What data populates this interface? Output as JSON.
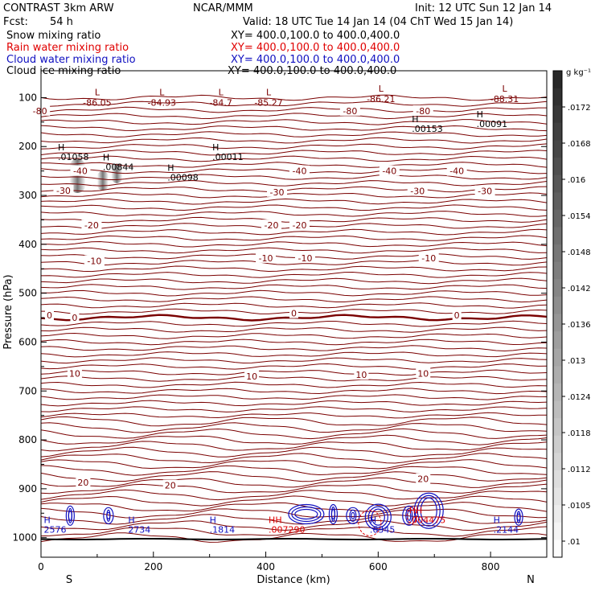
{
  "header": {
    "title": "CONTRAST  3km ARW",
    "fcst_label": "Fcst:",
    "fcst_value": "54 h",
    "center": "NCAR/MMM",
    "init": "Init: 12 UTC Sun 12 Jan 14",
    "valid": "Valid: 18 UTC Tue 14 Jan 14 (04 ChT Wed 15 Jan 14)",
    "fields": [
      {
        "name": "Snow mixing ratio",
        "xy": "XY= 400.0,100.0 to 400.0,400.0",
        "color": "#000000"
      },
      {
        "name": "Rain water mixing ratio",
        "xy": "XY= 400.0,100.0 to 400.0,400.0",
        "color": "#e00000"
      },
      {
        "name": "Cloud water mixing ratio",
        "xy": "XY= 400.0,100.0 to 400.0,400.0",
        "color": "#1010c0"
      },
      {
        "name": "Cloud ice mixing ratio",
        "xy": "XY= 400.0,100.0 to 400.0,400.0",
        "color": "#000000"
      }
    ]
  },
  "chart_data": {
    "type": "contour",
    "xlabel": "Distance (km)",
    "ylabel": "Pressure (hPa)",
    "xlim": [
      0,
      900
    ],
    "ylim": [
      1040,
      45
    ],
    "x_ticks": [
      0,
      200,
      400,
      600,
      800
    ],
    "y_ticks": [
      100,
      200,
      300,
      400,
      500,
      600,
      700,
      800,
      900,
      1000
    ],
    "x_end_labels": {
      "left": "S",
      "right": "N"
    },
    "colorbar": {
      "unit": "g kg⁻¹",
      "labels": [
        ".0172",
        ".0168",
        ".016",
        ".0154",
        ".0148",
        ".0142",
        ".0136",
        ".013",
        ".0124",
        ".0118",
        ".0112",
        ".0105",
        ".01"
      ]
    },
    "temperature_contours": {
      "color": "#7a0000",
      "levels": [
        -80,
        -70,
        -60,
        -50,
        -40,
        -30,
        -20,
        -10,
        0,
        10,
        20
      ],
      "labels": [
        {
          "text": "-80",
          "x": -2,
          "p": 127
        },
        {
          "text": "-80",
          "x": 550,
          "p": 127
        },
        {
          "text": "-80",
          "x": 680,
          "p": 127
        },
        {
          "text": "-40",
          "x": 70,
          "p": 250
        },
        {
          "text": "-40",
          "x": 460,
          "p": 250
        },
        {
          "text": "-40",
          "x": 620,
          "p": 250
        },
        {
          "text": "-40",
          "x": 740,
          "p": 250
        },
        {
          "text": "-30",
          "x": 40,
          "p": 290
        },
        {
          "text": "-30",
          "x": 420,
          "p": 293
        },
        {
          "text": "-30",
          "x": 670,
          "p": 291
        },
        {
          "text": "-30",
          "x": 790,
          "p": 291
        },
        {
          "text": "-20",
          "x": 90,
          "p": 361
        },
        {
          "text": "-20",
          "x": 410,
          "p": 361
        },
        {
          "text": "-20",
          "x": 460,
          "p": 361
        },
        {
          "text": "-10",
          "x": 95,
          "p": 434
        },
        {
          "text": "-10",
          "x": 400,
          "p": 428
        },
        {
          "text": "-10",
          "x": 470,
          "p": 428
        },
        {
          "text": "-10",
          "x": 690,
          "p": 428
        },
        {
          "text": "0",
          "x": 15,
          "p": 545
        },
        {
          "text": "0",
          "x": 60,
          "p": 550
        },
        {
          "text": "0",
          "x": 450,
          "p": 541
        },
        {
          "text": "0",
          "x": 740,
          "p": 545
        },
        {
          "text": "10",
          "x": 60,
          "p": 664
        },
        {
          "text": "10",
          "x": 375,
          "p": 670
        },
        {
          "text": "10",
          "x": 570,
          "p": 667
        },
        {
          "text": "10",
          "x": 680,
          "p": 664
        },
        {
          "text": "20",
          "x": 75,
          "p": 887
        },
        {
          "text": "20",
          "x": 230,
          "p": 893
        },
        {
          "text": "20",
          "x": 680,
          "p": 880
        }
      ]
    },
    "lows": [
      {
        "label": "L",
        "value": "-86.05",
        "x": 100,
        "p": 95
      },
      {
        "label": "L",
        "value": "-84.93",
        "x": 215,
        "p": 95
      },
      {
        "label": "L",
        "value": "-84.7",
        "x": 320,
        "p": 95
      },
      {
        "label": "L",
        "value": "-85.27",
        "x": 405,
        "p": 95
      },
      {
        "label": "L",
        "value": "-86.21",
        "x": 605,
        "p": 88
      },
      {
        "label": "L",
        "value": "-88.31",
        "x": 825,
        "p": 88
      }
    ],
    "highs": [
      {
        "label": "H",
        "value": ".00153",
        "x": 660,
        "p": 150,
        "color": "#000000"
      },
      {
        "label": "H",
        "value": ".00091",
        "x": 775,
        "p": 140,
        "color": "#000000"
      },
      {
        "label": "H",
        "value": ".01058",
        "x": 30,
        "p": 208,
        "color": "#000000"
      },
      {
        "label": "H",
        "value": ".00844",
        "x": 110,
        "p": 228,
        "color": "#000000"
      },
      {
        "label": "H",
        "value": ".00098",
        "x": 225,
        "p": 250,
        "color": "#000000"
      },
      {
        "label": "H",
        "value": ".00011",
        "x": 305,
        "p": 208,
        "color": "#000000"
      },
      {
        "label": "H",
        "value": "2576",
        "x": 5,
        "p": 970,
        "color": "#1010c0"
      },
      {
        "label": "H",
        "value": "2734",
        "x": 155,
        "p": 970,
        "color": "#1010c0"
      },
      {
        "label": "H",
        "value": ".1814",
        "x": 300,
        "p": 970,
        "color": "#1010c0"
      },
      {
        "label": "HH",
        "value": ".007290",
        "x": 405,
        "p": 970,
        "color": "#e00000"
      },
      {
        "label": "H",
        "value": ".6345",
        "x": 585,
        "p": 970,
        "color": "#1010c0"
      },
      {
        "label": "HH",
        "value": ".004475",
        "x": 655,
        "p": 950,
        "color": "#e00000"
      },
      {
        "label": "H",
        "value": ".2144",
        "x": 805,
        "p": 970,
        "color": "#1010c0"
      }
    ]
  }
}
